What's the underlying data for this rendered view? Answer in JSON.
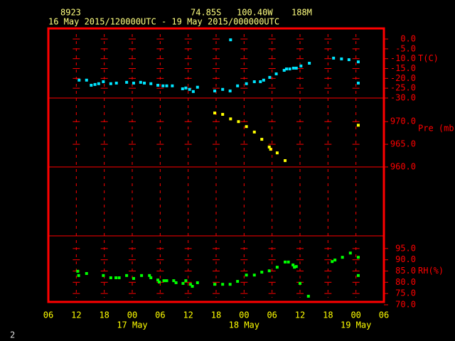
{
  "chart_data": {
    "type": "scatter",
    "header": {
      "station": "8923",
      "lat": "74.85S",
      "lon": "100.40W",
      "elev": "188M",
      "period": "16 May 2015/120000UTC - 19 May 2015/000000UTC"
    },
    "footer": "2",
    "xlim": [
      6,
      78
    ],
    "xticks": [
      {
        "value": 6,
        "label": "06"
      },
      {
        "value": 12,
        "label": "12"
      },
      {
        "value": 18,
        "label": "18"
      },
      {
        "value": 24,
        "label": "00"
      },
      {
        "value": 30,
        "label": "06"
      },
      {
        "value": 36,
        "label": "12"
      },
      {
        "value": 42,
        "label": "18"
      },
      {
        "value": 48,
        "label": "00"
      },
      {
        "value": 54,
        "label": "06"
      },
      {
        "value": 60,
        "label": "12"
      },
      {
        "value": 66,
        "label": "18"
      },
      {
        "value": 72,
        "label": "00"
      },
      {
        "value": 78,
        "label": "06"
      }
    ],
    "date_labels": [
      {
        "value": 24,
        "label": "17 May"
      },
      {
        "value": 48,
        "label": "18 May"
      },
      {
        "value": 72,
        "label": "19 May"
      }
    ],
    "grid": true,
    "panels": [
      {
        "name": "T(C)",
        "color": "#00e5ff",
        "ylim": [
          -30,
          5.4
        ],
        "yticks": [
          {
            "value": 0,
            "label": "0.0"
          },
          {
            "value": -5,
            "label": "-5.0"
          },
          {
            "value": -10,
            "label": "-10.0"
          },
          {
            "value": -15,
            "label": "-15.0"
          },
          {
            "value": -20,
            "label": "-20.0"
          },
          {
            "value": -25,
            "label": "-25.0"
          },
          {
            "value": -30,
            "label": "-30.0"
          }
        ],
        "x": [
          12.6,
          14.2,
          15.2,
          16.0,
          16.8,
          17.8,
          19.4,
          20.6,
          22.8,
          24.3,
          25.8,
          26.6,
          28.0,
          29.5,
          30.6,
          31.4,
          32.6,
          34.8,
          35.5,
          36.3,
          37.1,
          38.0,
          41.7,
          43.4,
          45.0,
          45.1,
          46.6,
          48.5,
          50.2,
          51.5,
          52.2,
          53.5,
          54.9,
          56.6,
          57.1,
          57.8,
          58.6,
          59.2,
          60.2,
          62.0,
          67.2,
          68.9,
          70.5,
          72.5,
          72.5
        ],
        "values": [
          -20.9,
          -20.9,
          -23.5,
          -23.1,
          -22.7,
          -21.7,
          -22.7,
          -22.4,
          -22.0,
          -22.4,
          -22.0,
          -22.4,
          -22.7,
          -23.5,
          -23.8,
          -23.8,
          -23.8,
          -25.3,
          -24.9,
          -25.6,
          -26.7,
          -24.5,
          -26.4,
          -25.6,
          -26.4,
          -0.4,
          -23.8,
          -22.7,
          -21.7,
          -21.7,
          -20.9,
          -19.5,
          -17.7,
          -15.9,
          -15.2,
          -15.2,
          -14.8,
          -14.8,
          -13.7,
          -12.3,
          -9.7,
          -10.1,
          -10.5,
          -11.6,
          -22.4
        ]
      },
      {
        "name": "Pre (mb)",
        "color": "#ffff00",
        "ylim": [
          960,
          975.2
        ],
        "yticks": [
          {
            "value": 970,
            "label": "970.0"
          },
          {
            "value": 965,
            "label": "965.0"
          },
          {
            "value": 960,
            "label": "960.0"
          }
        ],
        "x": [
          41.7,
          43.4,
          45.1,
          46.8,
          48.5,
          50.2,
          51.8,
          53.4,
          53.7,
          55.1,
          56.8,
          72.5
        ],
        "values": [
          971.9,
          971.6,
          970.6,
          970.0,
          968.9,
          967.7,
          966.1,
          964.4,
          963.9,
          963.1,
          961.4,
          969.2
        ]
      },
      {
        "name": "RH(%)",
        "color": "#00ff00",
        "ylim": [
          70,
          100
        ],
        "yticks": [
          {
            "value": 95,
            "label": "95.0"
          },
          {
            "value": 90,
            "label": "90.0"
          },
          {
            "value": 85,
            "label": "85.0"
          },
          {
            "value": 80,
            "label": "80.0"
          },
          {
            "value": 75,
            "label": "75.0"
          },
          {
            "value": 70,
            "label": "70.0"
          }
        ],
        "x": [
          12.3,
          12.5,
          14.2,
          17.8,
          19.4,
          20.5,
          21.2,
          22.8,
          24.3,
          26.0,
          27.7,
          28.0,
          29.5,
          29.8,
          30.8,
          31.4,
          32.9,
          33.4,
          34.9,
          35.5,
          36.5,
          36.9,
          38.0,
          41.7,
          43.4,
          45.0,
          46.6,
          48.5,
          50.2,
          51.8,
          53.4,
          55.1,
          56.8,
          57.5,
          58.5,
          58.8,
          59.2,
          60.0,
          61.8,
          66.9,
          67.5,
          69.1,
          70.8,
          72.5,
          72.5
        ],
        "values": [
          84.9,
          83.0,
          83.9,
          83.0,
          82.0,
          82.0,
          82.0,
          83.0,
          81.7,
          83.0,
          83.0,
          82.0,
          81.0,
          80.1,
          80.7,
          80.7,
          80.7,
          79.8,
          79.5,
          80.7,
          79.1,
          78.2,
          79.8,
          79.1,
          79.1,
          79.1,
          80.4,
          83.2,
          83.2,
          84.5,
          85.1,
          86.7,
          89.0,
          89.0,
          87.7,
          86.7,
          87.0,
          79.5,
          73.8,
          89.2,
          89.9,
          91.1,
          93.0,
          91.1,
          83.0
        ]
      }
    ]
  }
}
